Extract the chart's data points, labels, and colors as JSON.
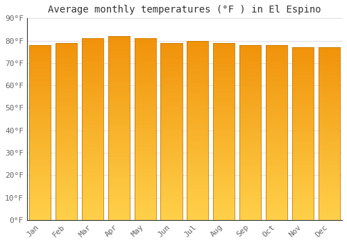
{
  "title": "Average monthly temperatures (°F ) in El Espino",
  "months": [
    "Jan",
    "Feb",
    "Mar",
    "Apr",
    "May",
    "Jun",
    "Jul",
    "Aug",
    "Sep",
    "Oct",
    "Nov",
    "Dec"
  ],
  "values": [
    78,
    79,
    81,
    82,
    81,
    79,
    80,
    79,
    78,
    78,
    77,
    77
  ],
  "ylim": [
    0,
    90
  ],
  "yticks": [
    0,
    10,
    20,
    30,
    40,
    50,
    60,
    70,
    80,
    90
  ],
  "ytick_labels": [
    "0°F",
    "10°F",
    "20°F",
    "30°F",
    "40°F",
    "50°F",
    "60°F",
    "70°F",
    "80°F",
    "90°F"
  ],
  "bar_color_bottom": "#FFD04A",
  "bar_color_top": "#F0920A",
  "bar_edge_color": "#C87800",
  "background_color": "#FFFFFF",
  "grid_color": "#DDDDDD",
  "title_fontsize": 10,
  "tick_fontsize": 8,
  "font_family": "monospace"
}
